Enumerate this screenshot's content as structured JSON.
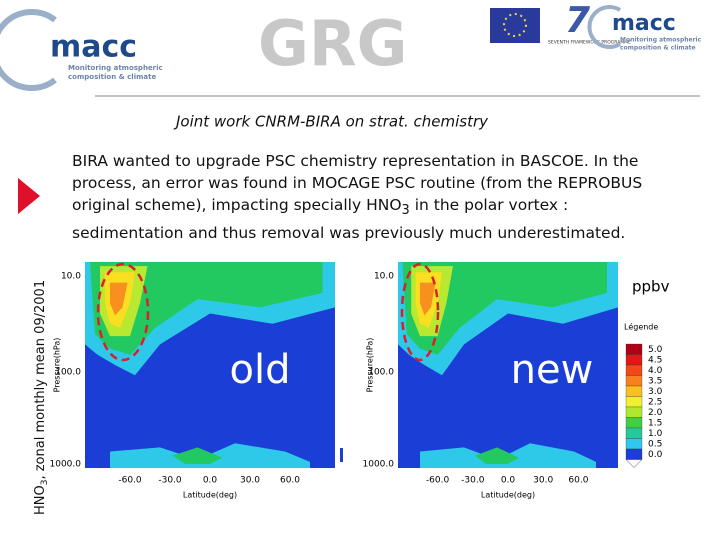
{
  "header": {
    "logo_left": {
      "name": "macc",
      "tagline": [
        "Monitoring atmospheric",
        "composition & climate"
      ]
    },
    "logo_center": "GRG",
    "logo_fp7": "SEVENTH FRAMEWORK PROGRAMME",
    "logo_right": {
      "name": "macc",
      "tagline": [
        "Monitoring atmospheric",
        "composition & climate"
      ]
    }
  },
  "subtitle": "Joint work CNRM-BIRA on strat. chemistry",
  "body": {
    "before": "BIRA wanted to upgrade PSC chemistry representation in BASCOE. In the process, an error was found in MOCAGE PSC routine (from the REPROBUS original scheme), impacting specially HNO",
    "sub": "3",
    "after": " in the polar vortex : sedimentation and thus removal was previously much underestimated."
  },
  "side_label": {
    "before": "HNO",
    "sub": "3",
    "after": ", zonal monthly mean 09/2001"
  },
  "plots": [
    {
      "annotation": "old",
      "y_label": "Pressure(hPa)",
      "x_label": "Latitude(deg)",
      "y_ticks": [
        "10.0",
        "100.0",
        "1000.0"
      ],
      "x_ticks": [
        "-60.0",
        "-30.0",
        "0.0",
        "30.0",
        "60.0"
      ]
    },
    {
      "annotation": "new",
      "y_label": "Pressure(hPa)",
      "x_label": "Latitude(deg)",
      "y_ticks": [
        "10.0",
        "100.0",
        "1000.0"
      ],
      "x_ticks": [
        "-60.0",
        "-30.0",
        "0.0",
        "30.0",
        "60.0"
      ]
    }
  ],
  "legend": {
    "unit": "ppbv",
    "title": "Légende",
    "labels": [
      "5.0",
      "4.5",
      "4.0",
      "3.5",
      "3.0",
      "2.5",
      "2.0",
      "1.5",
      "1.0",
      "0.5",
      "0.0"
    ]
  }
}
